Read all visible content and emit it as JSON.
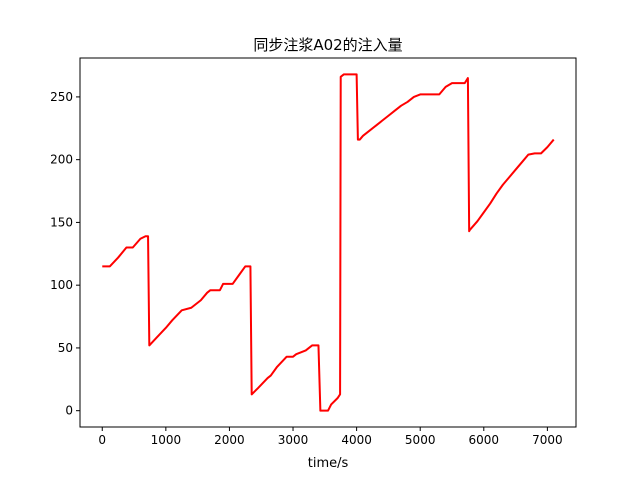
{
  "chart_data": {
    "type": "line",
    "title": "同步注浆A02的注入量",
    "xlabel": "time/s",
    "ylabel": "",
    "xlim": [
      -350,
      7450
    ],
    "ylim": [
      -13,
      281
    ],
    "xticks": [
      0,
      1000,
      2000,
      3000,
      4000,
      5000,
      6000,
      7000
    ],
    "yticks": [
      0,
      50,
      100,
      150,
      200,
      250
    ],
    "xtick_labels": [
      "0",
      "1000",
      "2000",
      "3000",
      "4000",
      "5000",
      "6000",
      "7000"
    ],
    "ytick_labels": [
      "0",
      "50",
      "100",
      "150",
      "200",
      "250"
    ],
    "grid": false,
    "legend": "none",
    "series": [
      {
        "name": "A02",
        "color": "#ff0000",
        "x": [
          0,
          120,
          250,
          380,
          480,
          600,
          680,
          720,
          740,
          850,
          1000,
          1100,
          1250,
          1400,
          1550,
          1650,
          1700,
          1850,
          1900,
          2050,
          2150,
          2250,
          2300,
          2330,
          2350,
          2450,
          2600,
          2650,
          2750,
          2900,
          2950,
          3000,
          3050,
          3200,
          3300,
          3350,
          3400,
          3430,
          3450,
          3550,
          3600,
          3700,
          3740,
          3750,
          3800,
          4000,
          4020,
          4050,
          4100,
          4200,
          4300,
          4400,
          4500,
          4600,
          4700,
          4800,
          4900,
          5000,
          5100,
          5200,
          5300,
          5400,
          5500,
          5600,
          5700,
          5750,
          5770,
          5780,
          5900,
          6000,
          6100,
          6200,
          6300,
          6400,
          6500,
          6600,
          6700,
          6800,
          6900,
          7000,
          7100
        ],
        "y": [
          115,
          115,
          122,
          130,
          130,
          137,
          139,
          139,
          52,
          58,
          66,
          72,
          80,
          82,
          88,
          94,
          96,
          96,
          101,
          101,
          108,
          115,
          115,
          115,
          13,
          18,
          26,
          28,
          35,
          43,
          43,
          43,
          45,
          48,
          52,
          52,
          52,
          0,
          0,
          0,
          5,
          10,
          13,
          266,
          268,
          268,
          216,
          216,
          219,
          223,
          227,
          231,
          235,
          239,
          243,
          246,
          250,
          252,
          252,
          252,
          252,
          258,
          261,
          261,
          261,
          265,
          143,
          144,
          151,
          158,
          165,
          173,
          180,
          186,
          192,
          198,
          204,
          205,
          205,
          210,
          216
        ]
      }
    ]
  }
}
